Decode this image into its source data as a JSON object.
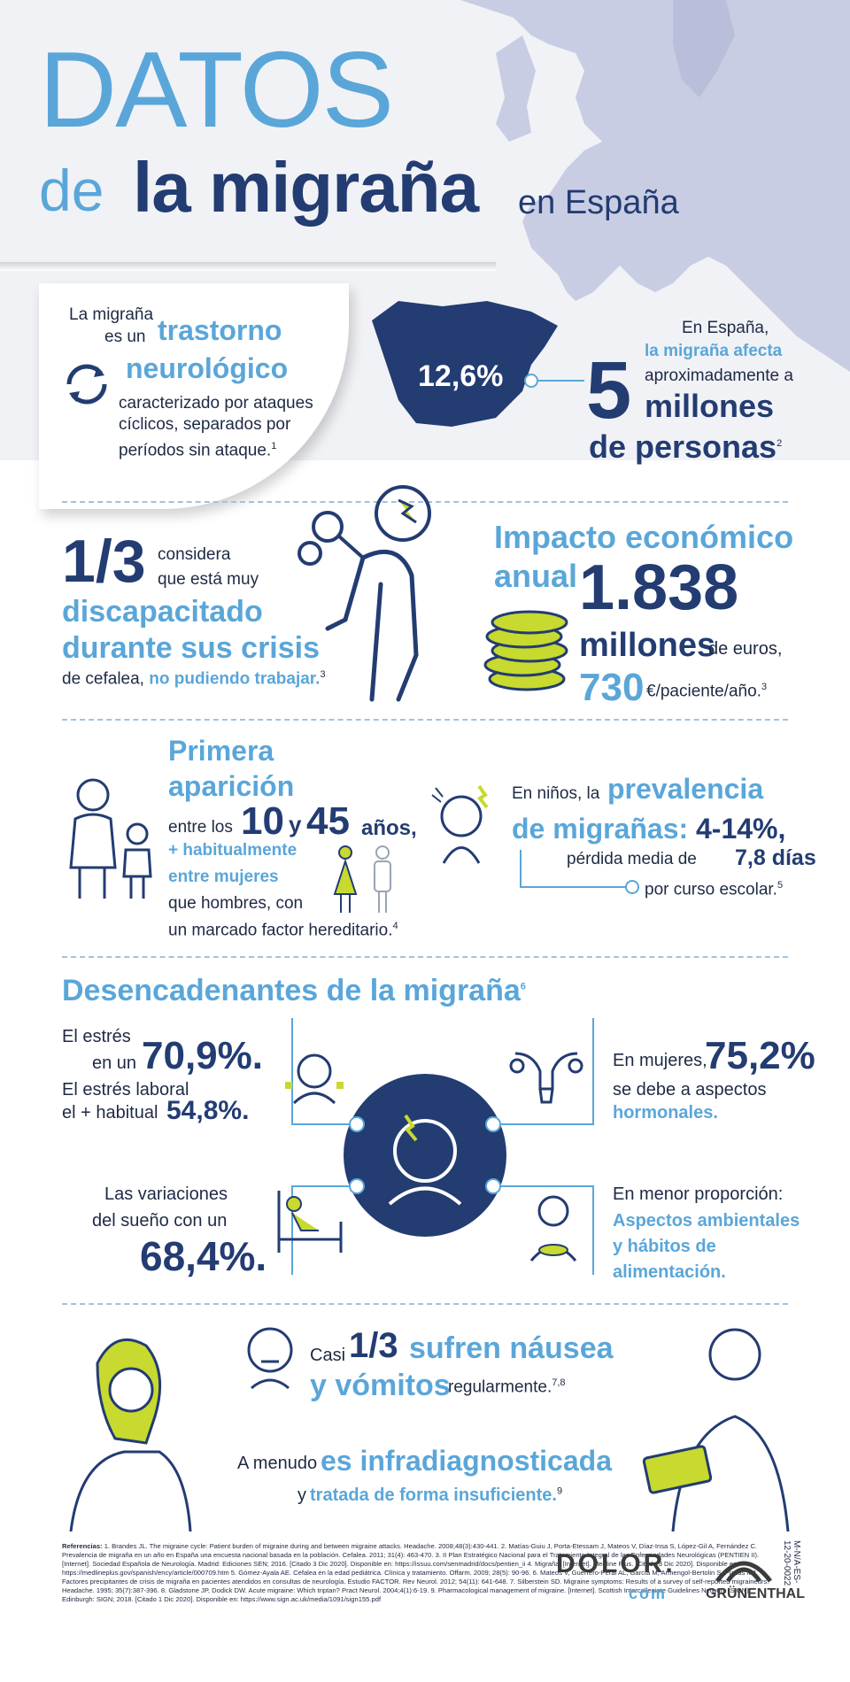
{
  "header": {
    "title_line1": "DATOS",
    "title_de": "de",
    "title_main": "la migraña",
    "title_en": "en España"
  },
  "definition": {
    "line1": "La migraña",
    "line2": "es un",
    "highlight1": "trastorno",
    "highlight2": "neurológico",
    "line3": "caracterizado por ataques cíclicos, separados por períodos sin ataque.",
    "ref": "1"
  },
  "spain": {
    "percent": "12,6%",
    "line1": "En España,",
    "line2": "la migraña afecta",
    "line3": "aproximadamente a",
    "big_number": "5",
    "millones": "millones",
    "de_personas": "de personas",
    "ref": "2"
  },
  "disability": {
    "fraction": "1/3",
    "small1": "considera",
    "small2": "que está muy",
    "line1": "discapacitado",
    "line2": "durante sus crisis",
    "line3_a": "de cefalea,",
    "line3_b": "no pudiendo trabajar.",
    "ref": "3"
  },
  "economic": {
    "title1": "Impacto económico",
    "title2": "anual",
    "amount": "1.838",
    "millones": "millones",
    "de_euros": "de euros,",
    "per_patient": "730",
    "per_patient_unit": "€/paciente/año.",
    "ref": "3"
  },
  "first_onset": {
    "title1": "Primera",
    "title2": "aparición",
    "entre_los": "entre los",
    "age1": "10",
    "y": "y",
    "age2": "45",
    "anos": "años,",
    "line1": "+ habitualmente",
    "line2": "entre mujeres",
    "line3": "que hombres, con",
    "line4": "un marcado factor hereditario.",
    "ref": "4"
  },
  "children": {
    "line1": "En niños, la",
    "highlight1": "prevalencia",
    "highlight2": "de migrañas:",
    "range": "4-14%,",
    "line2": "pérdida media de",
    "days": "7,8 días",
    "line3": "por curso escolar.",
    "ref": "5"
  },
  "triggers": {
    "title": "Desencadenantes de la migraña",
    "ref": "6",
    "stress_a": "El estrés",
    "stress_b": "en un",
    "stress_value": "70,9%.",
    "work_a": "El estrés laboral",
    "work_b": "el + habitual",
    "work_value": "54,8%.",
    "women_a": "En mujeres,",
    "women_value": "75,2%",
    "women_b": "se debe a aspectos",
    "women_c": "hormonales.",
    "sleep_a": "Las variaciones",
    "sleep_b": "del sueño con un",
    "sleep_value": "68,4%.",
    "env_a": "En menor proporción:",
    "env_b": "Aspectos ambientales",
    "env_c": "y hábitos de",
    "env_d": "alimentación."
  },
  "nausea": {
    "casi": "Casi",
    "fraction": "1/3",
    "line1": "sufren náusea",
    "line2": "y vómitos",
    "line3": "regularmente.",
    "ref": "7,8"
  },
  "diagnosis": {
    "a_menudo": "A menudo",
    "highlight": "es infradiagnosticada",
    "y": "y",
    "line2": "tratada de forma insuficiente.",
    "ref": "9"
  },
  "references": {
    "label": "Referencias:",
    "text": "1. Brandes JL. The migraine cycle: Patient burden of migraine during and between migraine attacks. Headache. 2008;48(3):430-441. 2. Matías-Guiu J, Porta-Etessam J, Mateos V, Díaz-Insa S, López-Gil A, Fernández C. Prevalencia de migraña en un año en España una encuesta nacional basada en la población. Cefalea. 2011; 31(4): 463-470. 3. II Plan Estratégico Nacional para el Tratamiento Integral de las Enfermedades Neurológicas (PENTIEN II). [Internet]. Sociedad Española de Neurología. Madrid: Ediciones SEN; 2016. [Citado 3 Dic 2020]. Disponible en: https://issuu.com/senmadrid/docs/pentien_ii 4. Migraña. [Internet]. Medline Plus. [Citado 3 Dic 2020]. Disponible en: https://medlineplus.gov/spanish/ency/article/000709.htm 5. Gómez-Ayala AE. Cefalea en la edad pediátrica. Clínica y tratamiento. Offarm. 2009; 28(5): 90-96. 6. Mateos V, Guerrero-Peral AL, García M, Armengol-Bertolin S, Plazas MJ. Factores precipitantes de crisis de migraña en pacientes atendidos en consultas de neurología. Estudio FACTOR. Rev Neurol. 2012; 54(11): 641-648. 7. Silberstein SD. Migraine symptoms: Results of a survey of self-reported migraineurs. Headache. 1995; 35(7):387-396. 8. Gladstone JP, Dodick DW. Acute migraine: Which triptan? Pract Neurol. 2004;4(1):6-19. 9. Pharmacological management of migraine. [Internet]. Scottish Intercollegiate Guidelines Network (SIGN). Edinburgh: SIGN; 2018. [Citado 1 Dic 2020]. Disponible en: https://www.sign.ac.uk/media/1091/sign155.pdf"
  },
  "footer": {
    "code": "M-N/A-ES-12-20-0022",
    "dolor": "DOLOR.",
    "dolor_com": "com",
    "grunenthal": "GRÜNENTHAL"
  },
  "colors": {
    "navy": "#233c72",
    "light_blue": "#5aa6d9",
    "lime": "#c8d92f"
  }
}
